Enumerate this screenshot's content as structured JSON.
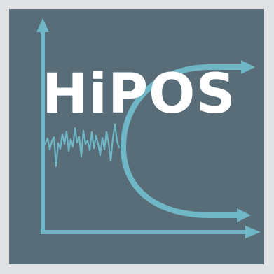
{
  "logo": {
    "text": "HiPOS"
  },
  "colors": {
    "page_background": "#dfe1e3",
    "panel": "#586d77",
    "accent": "#6fb7c6",
    "text": "#ffffff"
  },
  "icons": {
    "axes": "chart-axes-icon",
    "noise": "noisy-signal-icon",
    "bifurcation": "bifurcation-curve-icon"
  }
}
